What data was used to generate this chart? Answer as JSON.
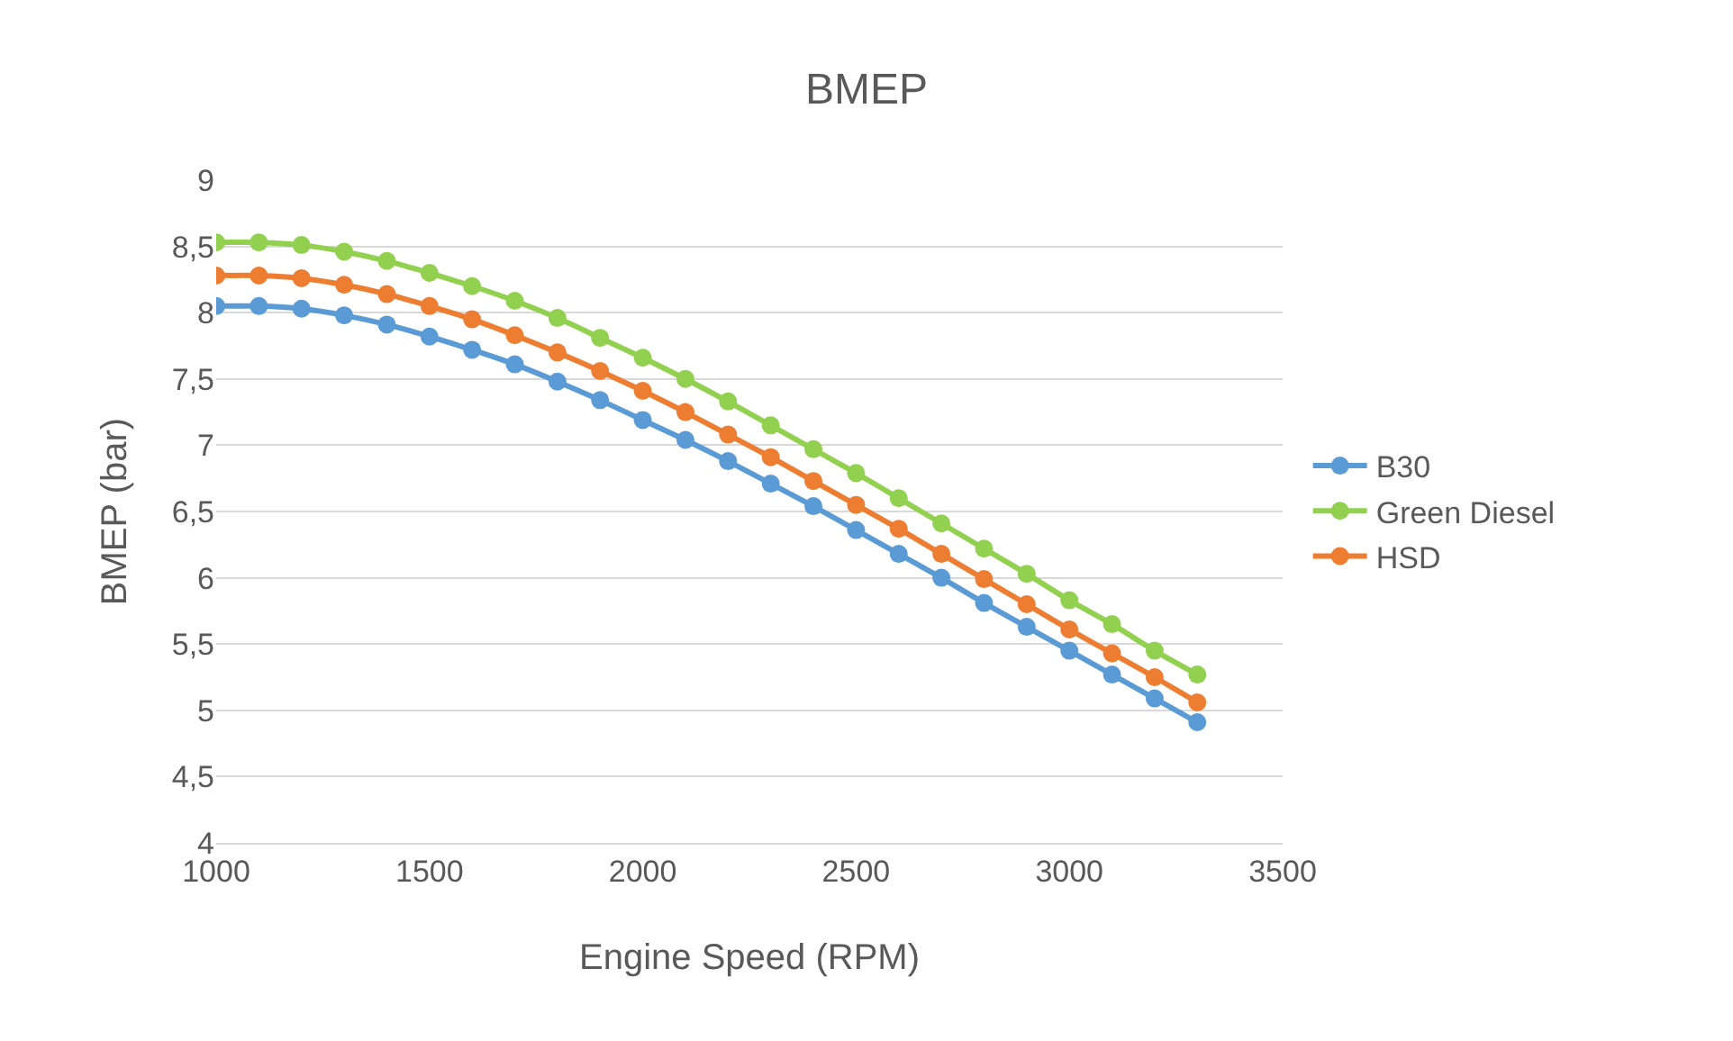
{
  "chart_data": {
    "type": "line",
    "title": "BMEP",
    "xlabel": "Engine Speed (RPM)",
    "ylabel": "BMEP (bar)",
    "x": [
      1000,
      1100,
      1200,
      1300,
      1400,
      1500,
      1600,
      1700,
      1800,
      1900,
      2000,
      2100,
      2200,
      2300,
      2400,
      2500,
      2600,
      2700,
      2800,
      2900,
      3000,
      3100,
      3200,
      3300
    ],
    "series": [
      {
        "name": "B30",
        "color": "#5b9bd5",
        "values": [
          8.05,
          8.05,
          8.03,
          7.98,
          7.91,
          7.82,
          7.72,
          7.61,
          7.48,
          7.34,
          7.19,
          7.04,
          6.88,
          6.71,
          6.54,
          6.36,
          6.18,
          6.0,
          5.81,
          5.63,
          5.45,
          5.27,
          5.09,
          4.91
        ]
      },
      {
        "name": "Green Diesel",
        "color": "#92d050",
        "values": [
          8.53,
          8.53,
          8.51,
          8.46,
          8.39,
          8.3,
          8.2,
          8.09,
          7.96,
          7.81,
          7.66,
          7.5,
          7.33,
          7.15,
          6.97,
          6.79,
          6.6,
          6.41,
          6.22,
          6.03,
          5.83,
          5.65,
          5.45,
          5.27
        ]
      },
      {
        "name": "HSD",
        "color": "#ed7d31",
        "values": [
          8.28,
          8.28,
          8.26,
          8.21,
          8.14,
          8.05,
          7.95,
          7.83,
          7.7,
          7.56,
          7.41,
          7.25,
          7.08,
          6.91,
          6.73,
          6.55,
          6.37,
          6.18,
          5.99,
          5.8,
          5.61,
          5.43,
          5.25,
          5.06
        ]
      }
    ],
    "xlim": [
      1000,
      3500
    ],
    "xticks": [
      1000,
      1500,
      2000,
      2500,
      3000,
      3500
    ],
    "ylim": [
      4,
      9
    ],
    "yticks": [
      4,
      {
        "value": 4.5,
        "label": "4,5"
      },
      5,
      {
        "value": 5.5,
        "label": "5,5"
      },
      6,
      {
        "value": 6.5,
        "label": "6,5"
      },
      7,
      {
        "value": 7.5,
        "label": "7,5"
      },
      8,
      {
        "value": 8.5,
        "label": "8,5"
      },
      9
    ],
    "grid": "y",
    "legend": "right",
    "marker": "circle",
    "line_style": "solid"
  }
}
